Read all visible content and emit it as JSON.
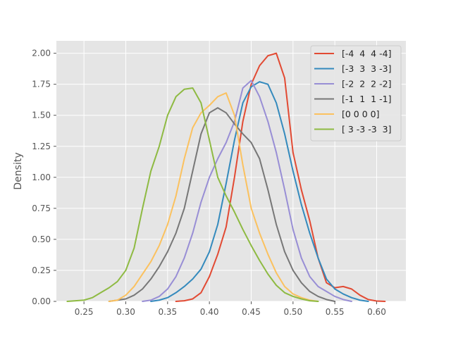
{
  "chart_data": {
    "type": "line",
    "title": "",
    "xlabel": "",
    "ylabel": "Density",
    "xlim": [
      0.217,
      0.635
    ],
    "ylim": [
      0,
      2.1
    ],
    "xticks": [
      0.25,
      0.3,
      0.35,
      0.4,
      0.45,
      0.5,
      0.55,
      0.6
    ],
    "yticks": [
      0.0,
      0.25,
      0.5,
      0.75,
      1.0,
      1.25,
      1.5,
      1.75,
      2.0
    ],
    "grid": true,
    "legend_position": "top-right",
    "series": [
      {
        "name": "[-4  4  4 -4]",
        "color": "#e24a33",
        "points": [
          [
            0.36,
            0
          ],
          [
            0.37,
            0.005
          ],
          [
            0.38,
            0.02
          ],
          [
            0.39,
            0.07
          ],
          [
            0.4,
            0.2
          ],
          [
            0.41,
            0.38
          ],
          [
            0.42,
            0.6
          ],
          [
            0.43,
            1.0
          ],
          [
            0.44,
            1.45
          ],
          [
            0.45,
            1.75
          ],
          [
            0.46,
            1.9
          ],
          [
            0.47,
            1.98
          ],
          [
            0.48,
            2.0
          ],
          [
            0.49,
            1.8
          ],
          [
            0.5,
            1.2
          ],
          [
            0.51,
            0.9
          ],
          [
            0.52,
            0.65
          ],
          [
            0.53,
            0.35
          ],
          [
            0.54,
            0.15
          ],
          [
            0.55,
            0.11
          ],
          [
            0.56,
            0.12
          ],
          [
            0.57,
            0.1
          ],
          [
            0.58,
            0.05
          ],
          [
            0.59,
            0.015
          ],
          [
            0.6,
            0.003
          ],
          [
            0.61,
            0
          ]
        ]
      },
      {
        "name": "[-3  3  3 -3]",
        "color": "#348abd",
        "points": [
          [
            0.33,
            0
          ],
          [
            0.34,
            0.01
          ],
          [
            0.35,
            0.03
          ],
          [
            0.36,
            0.07
          ],
          [
            0.37,
            0.12
          ],
          [
            0.38,
            0.18
          ],
          [
            0.39,
            0.26
          ],
          [
            0.4,
            0.4
          ],
          [
            0.41,
            0.62
          ],
          [
            0.42,
            0.95
          ],
          [
            0.43,
            1.3
          ],
          [
            0.44,
            1.6
          ],
          [
            0.45,
            1.73
          ],
          [
            0.46,
            1.77
          ],
          [
            0.47,
            1.75
          ],
          [
            0.48,
            1.6
          ],
          [
            0.49,
            1.35
          ],
          [
            0.5,
            1.05
          ],
          [
            0.51,
            0.78
          ],
          [
            0.52,
            0.55
          ],
          [
            0.53,
            0.35
          ],
          [
            0.54,
            0.18
          ],
          [
            0.55,
            0.1
          ],
          [
            0.56,
            0.06
          ],
          [
            0.57,
            0.03
          ],
          [
            0.58,
            0.01
          ],
          [
            0.59,
            0
          ]
        ]
      },
      {
        "name": "[-2  2  2 -2]",
        "color": "#988ed5",
        "points": [
          [
            0.32,
            0
          ],
          [
            0.33,
            0.01
          ],
          [
            0.34,
            0.04
          ],
          [
            0.35,
            0.1
          ],
          [
            0.36,
            0.2
          ],
          [
            0.37,
            0.35
          ],
          [
            0.38,
            0.55
          ],
          [
            0.39,
            0.8
          ],
          [
            0.4,
            1.0
          ],
          [
            0.41,
            1.15
          ],
          [
            0.42,
            1.28
          ],
          [
            0.43,
            1.45
          ],
          [
            0.44,
            1.72
          ],
          [
            0.45,
            1.78
          ],
          [
            0.46,
            1.65
          ],
          [
            0.47,
            1.45
          ],
          [
            0.48,
            1.2
          ],
          [
            0.49,
            0.9
          ],
          [
            0.5,
            0.58
          ],
          [
            0.51,
            0.35
          ],
          [
            0.52,
            0.2
          ],
          [
            0.53,
            0.12
          ],
          [
            0.54,
            0.08
          ],
          [
            0.55,
            0.04
          ],
          [
            0.56,
            0.015
          ],
          [
            0.57,
            0
          ]
        ]
      },
      {
        "name": "[-1  1  1 -1]",
        "color": "#777777",
        "points": [
          [
            0.28,
            0
          ],
          [
            0.29,
            0.01
          ],
          [
            0.3,
            0.02
          ],
          [
            0.31,
            0.05
          ],
          [
            0.32,
            0.1
          ],
          [
            0.33,
            0.18
          ],
          [
            0.34,
            0.28
          ],
          [
            0.35,
            0.4
          ],
          [
            0.36,
            0.55
          ],
          [
            0.37,
            0.75
          ],
          [
            0.38,
            1.05
          ],
          [
            0.39,
            1.35
          ],
          [
            0.4,
            1.52
          ],
          [
            0.41,
            1.56
          ],
          [
            0.42,
            1.52
          ],
          [
            0.43,
            1.43
          ],
          [
            0.44,
            1.35
          ],
          [
            0.45,
            1.28
          ],
          [
            0.46,
            1.15
          ],
          [
            0.47,
            0.9
          ],
          [
            0.48,
            0.62
          ],
          [
            0.49,
            0.4
          ],
          [
            0.5,
            0.25
          ],
          [
            0.51,
            0.15
          ],
          [
            0.52,
            0.08
          ],
          [
            0.53,
            0.04
          ],
          [
            0.54,
            0.015
          ],
          [
            0.55,
            0
          ]
        ]
      },
      {
        "name": "[0 0 0 0]",
        "color": "#fbc15e",
        "points": [
          [
            0.28,
            0
          ],
          [
            0.29,
            0.01
          ],
          [
            0.3,
            0.05
          ],
          [
            0.31,
            0.12
          ],
          [
            0.32,
            0.22
          ],
          [
            0.33,
            0.32
          ],
          [
            0.34,
            0.45
          ],
          [
            0.35,
            0.62
          ],
          [
            0.36,
            0.85
          ],
          [
            0.37,
            1.15
          ],
          [
            0.38,
            1.4
          ],
          [
            0.39,
            1.52
          ],
          [
            0.4,
            1.58
          ],
          [
            0.41,
            1.65
          ],
          [
            0.42,
            1.68
          ],
          [
            0.43,
            1.5
          ],
          [
            0.44,
            1.1
          ],
          [
            0.45,
            0.75
          ],
          [
            0.46,
            0.55
          ],
          [
            0.47,
            0.38
          ],
          [
            0.48,
            0.23
          ],
          [
            0.49,
            0.12
          ],
          [
            0.5,
            0.06
          ],
          [
            0.51,
            0.03
          ],
          [
            0.52,
            0.01
          ],
          [
            0.53,
            0
          ]
        ]
      },
      {
        "name": "[ 3 -3 -3  3]",
        "color": "#8eba42",
        "points": [
          [
            0.23,
            0
          ],
          [
            0.24,
            0.005
          ],
          [
            0.25,
            0.01
          ],
          [
            0.26,
            0.03
          ],
          [
            0.27,
            0.07
          ],
          [
            0.28,
            0.11
          ],
          [
            0.29,
            0.16
          ],
          [
            0.3,
            0.25
          ],
          [
            0.31,
            0.43
          ],
          [
            0.32,
            0.75
          ],
          [
            0.33,
            1.05
          ],
          [
            0.34,
            1.25
          ],
          [
            0.35,
            1.5
          ],
          [
            0.36,
            1.65
          ],
          [
            0.37,
            1.71
          ],
          [
            0.38,
            1.72
          ],
          [
            0.39,
            1.6
          ],
          [
            0.4,
            1.3
          ],
          [
            0.41,
            1.0
          ],
          [
            0.42,
            0.85
          ],
          [
            0.43,
            0.72
          ],
          [
            0.44,
            0.58
          ],
          [
            0.45,
            0.45
          ],
          [
            0.46,
            0.33
          ],
          [
            0.47,
            0.22
          ],
          [
            0.48,
            0.13
          ],
          [
            0.49,
            0.07
          ],
          [
            0.5,
            0.04
          ],
          [
            0.51,
            0.02
          ],
          [
            0.52,
            0.005
          ],
          [
            0.53,
            0
          ]
        ]
      }
    ]
  }
}
